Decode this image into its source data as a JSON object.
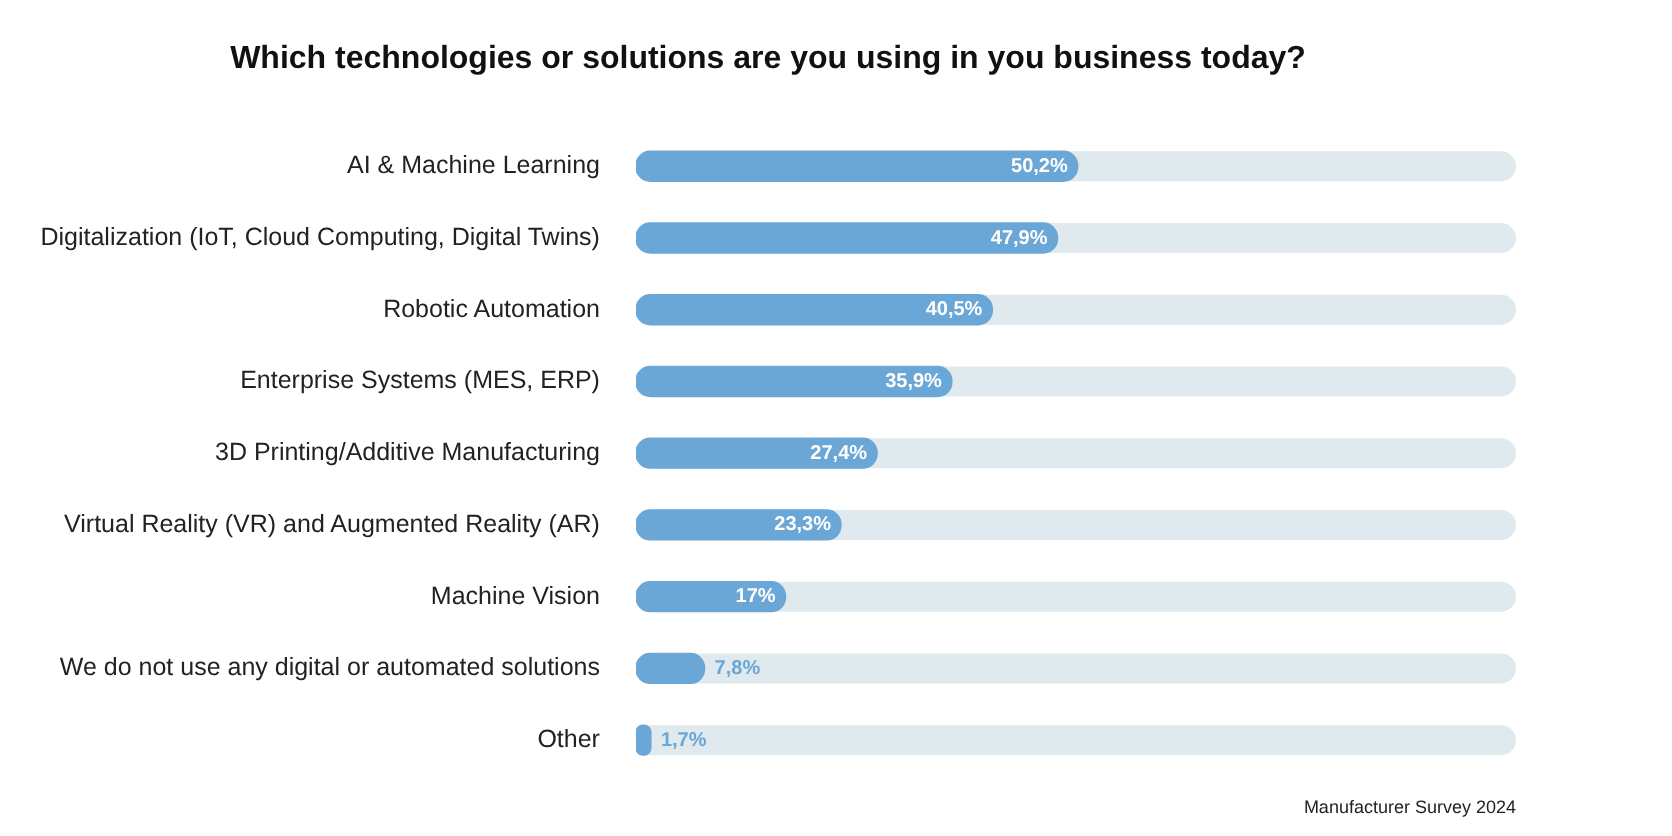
{
  "chart_data": {
    "type": "bar",
    "orientation": "horizontal",
    "title": "Which technologies or solutions are you using in you business today?",
    "categories": [
      "AI & Machine Learning",
      "Digitalization (IoT, Cloud Computing, Digital Twins)",
      "Robotic Automation",
      "Enterprise Systems (MES, ERP)",
      "3D Printing/Additive Manufacturing",
      "Virtual Reality (VR) and Augmented Reality (AR)",
      "Machine Vision",
      "We do not use any digital or automated solutions",
      "Other"
    ],
    "values": [
      50.2,
      47.9,
      40.5,
      35.9,
      27.4,
      23.3,
      17,
      7.8,
      1.7
    ],
    "value_labels": [
      "50,2%",
      "47,9%",
      "40,5%",
      "35,9%",
      "27,4%",
      "23,3%",
      "17%",
      "7,8%",
      "1,7%"
    ],
    "color": "#6aa6d6",
    "xlim": [
      0,
      100
    ],
    "tick_labels": "y",
    "annotations": [
      "Manufacturer Survey 2024"
    ]
  }
}
